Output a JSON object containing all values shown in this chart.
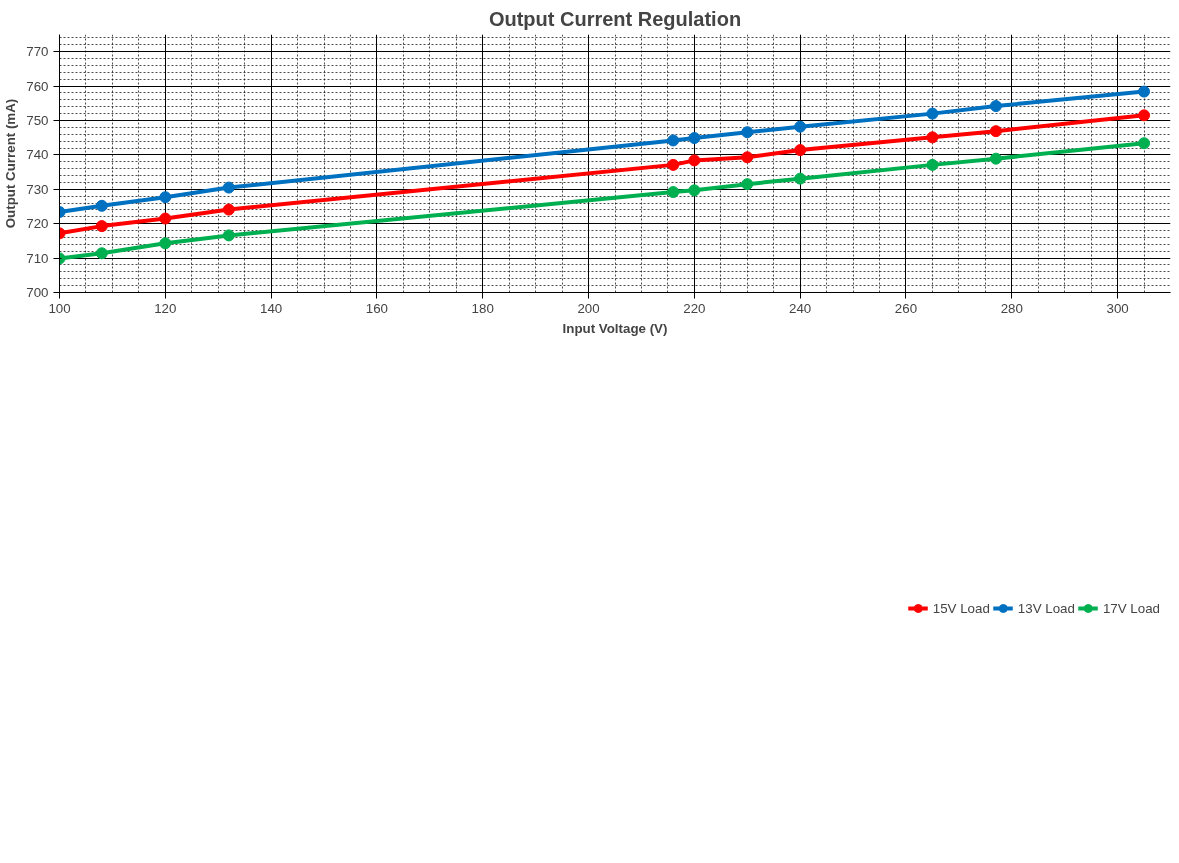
{
  "chart_data": {
    "type": "line",
    "title": "Output Current Regulation",
    "xlabel": "Input Voltage (V)",
    "ylabel": "Output Current (mA)",
    "x": [
      100,
      108,
      120,
      132,
      216,
      220,
      230,
      240,
      265,
      277,
      305
    ],
    "series": [
      {
        "name": "15V Load",
        "color": "#ff0000",
        "values": [
          717.2,
          719.3,
          721.5,
          724.1,
          737.1,
          738.4,
          739.3,
          741.4,
          745.1,
          746.9,
          751.5
        ]
      },
      {
        "name": "13V Load",
        "color": "#0070c0",
        "values": [
          723.4,
          725.2,
          727.7,
          730.5,
          744.2,
          744.9,
          746.6,
          748.2,
          752.0,
          754.2,
          758.4
        ]
      },
      {
        "name": "17V Load",
        "color": "#00b050",
        "values": [
          709.9,
          711.4,
          714.3,
          716.6,
          729.2,
          729.7,
          731.5,
          733.1,
          737.1,
          738.9,
          743.4
        ]
      }
    ],
    "xlim": [
      100,
      310
    ],
    "ylim": [
      700,
      775
    ],
    "xticks": [
      100,
      120,
      140,
      160,
      180,
      200,
      220,
      240,
      260,
      280,
      300
    ],
    "yticks": [
      700,
      710,
      720,
      730,
      740,
      750,
      760,
      770
    ],
    "grid": true,
    "legend": "bottom",
    "marker": "circle",
    "line_style": "solid"
  }
}
